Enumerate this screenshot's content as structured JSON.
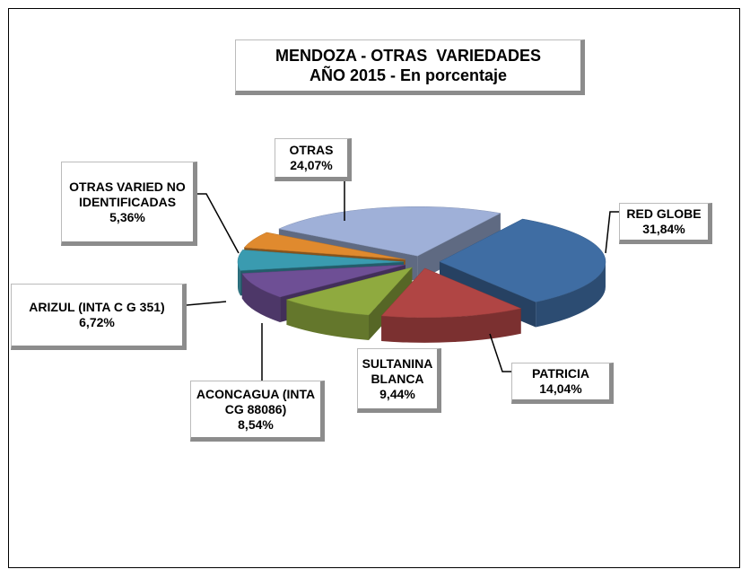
{
  "chart_data": {
    "type": "pie",
    "title": "MENDOZA - OTRAS  VARIEDADES",
    "subtitle": "AÑO 2015 - En porcentaje",
    "categories": [
      "RED GLOBE",
      "PATRICIA",
      "SULTANINA BLANCA",
      "ACONCAGUA (INTA CG 88086)",
      "ARIZUL (INTA C G 351)",
      "OTRAS VARIED NO IDENTIFICADAS",
      "OTRAS"
    ],
    "values": [
      31.84,
      14.04,
      9.44,
      8.54,
      6.72,
      5.36,
      24.07
    ],
    "value_labels": [
      "31,84%",
      "14,04%",
      "9,44%",
      "8,54%",
      "6,72%",
      "5,36%",
      "24,07%"
    ],
    "colors": [
      "#3f6da3",
      "#b04544",
      "#8faa3f",
      "#6e4f95",
      "#3a9bb0",
      "#e08a2e",
      "#9fb0d8"
    ]
  }
}
